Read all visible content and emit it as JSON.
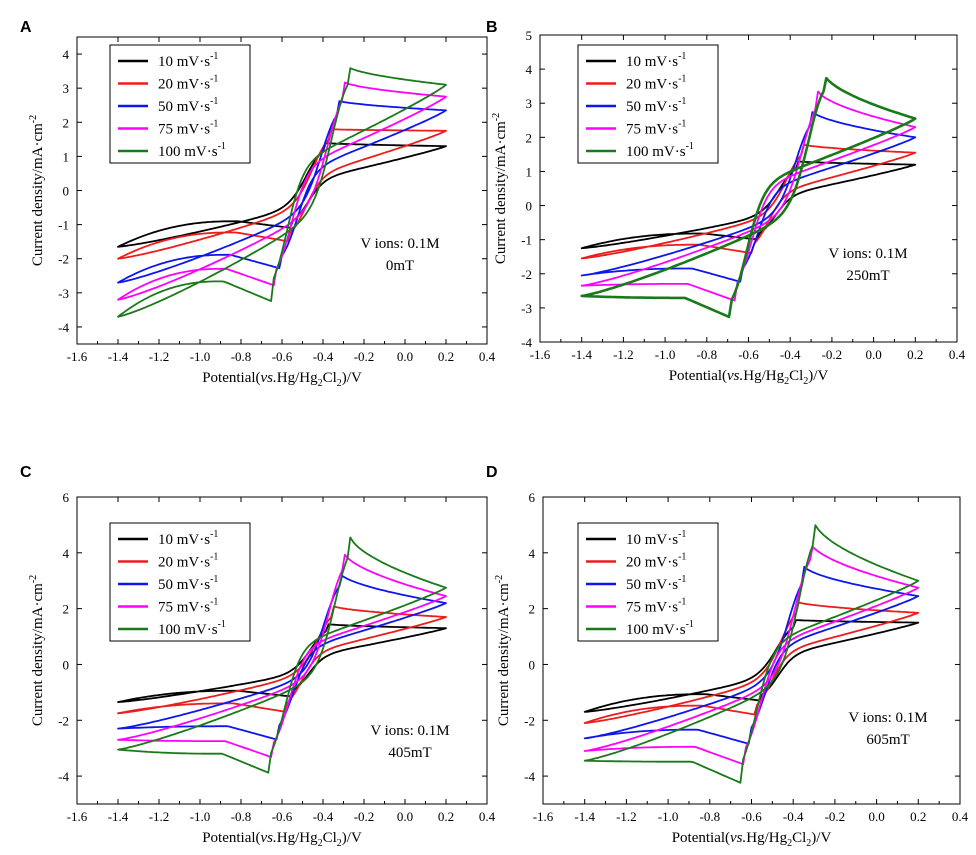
{
  "colors": {
    "10": "#000000",
    "20": "#ee1c1c",
    "50": "#0d16f0",
    "75": "#ff00ff",
    "100": "#1a7a1a"
  },
  "chart_data": [
    {
      "panel": "A",
      "type": "line",
      "ylim": [
        -4.5,
        4.5
      ],
      "xlim": [
        -1.6,
        0.4
      ],
      "xticks": [
        "-1.6",
        "-1.4",
        "-1.2",
        "-1.0",
        "-0.8",
        "-0.6",
        "-0.4",
        "-0.2",
        "0.0",
        "0.2",
        "0.4"
      ],
      "yticks": [
        "-4",
        "-3",
        "-2",
        "-1",
        "0",
        "1",
        "2",
        "3",
        "4"
      ],
      "ylabel_main": "Current density/mA·cm",
      "ylabel_sup": "-2",
      "xlabel_pre": "Potential(",
      "xlabel_italic": "vs.",
      "xlabel_mid": "Hg/Hg",
      "xlabel_sub": "2",
      "xlabel_mid2": "Cl",
      "xlabel_sub2": "2",
      "xlabel_post": ")/V",
      "annotation_1": "V ions: 0.1M",
      "annotation_2": "0mT",
      "legend": [
        {
          "label": "10 mV·s",
          "sup": "-1"
        },
        {
          "label": "20 mV·s",
          "sup": "-1"
        },
        {
          "label": "50 mV·s",
          "sup": "-1"
        },
        {
          "label": "75 mV·s",
          "sup": "-1"
        },
        {
          "label": "100 mV·s",
          "sup": "-1"
        }
      ],
      "series": [
        {
          "name": "10 mV·s-1",
          "start_anodic": -1.65,
          "peak_a_x": -0.4,
          "peak_a_y": 1.4,
          "end_anodic": 1.3,
          "start_cathodic": 1.3,
          "peak_c_x": -0.55,
          "peak_c_y": -1.1,
          "end_cathodic": -1.65
        },
        {
          "name": "20 mV·s-1",
          "start_anodic": -2.0,
          "peak_a_x": -0.37,
          "peak_a_y": 1.8,
          "end_anodic": 1.75,
          "start_cathodic": 1.75,
          "peak_c_x": -0.56,
          "peak_c_y": -1.5,
          "end_cathodic": -2.0
        },
        {
          "name": "50 mV·s-1",
          "start_anodic": -2.7,
          "peak_a_x": -0.33,
          "peak_a_y": 2.65,
          "end_anodic": 2.35,
          "start_cathodic": 2.35,
          "peak_c_x": -0.6,
          "peak_c_y": -2.3,
          "end_cathodic": -2.7
        },
        {
          "name": "75 mV·s-1",
          "start_anodic": -3.2,
          "peak_a_x": -0.3,
          "peak_a_y": 3.2,
          "end_anodic": 2.75,
          "start_cathodic": 2.75,
          "peak_c_x": -0.63,
          "peak_c_y": -2.8,
          "end_cathodic": -3.2
        },
        {
          "name": "100 mV·s-1",
          "start_anodic": -3.7,
          "peak_a_x": -0.28,
          "peak_a_y": 3.65,
          "end_anodic": 3.1,
          "start_cathodic": 3.1,
          "peak_c_x": -0.65,
          "peak_c_y": -3.25,
          "end_cathodic": -3.7
        }
      ]
    },
    {
      "panel": "B",
      "type": "line",
      "ylim": [
        -4,
        5
      ],
      "xlim": [
        -1.6,
        0.4
      ],
      "xticks": [
        "-1.6",
        "-1.4",
        "-1.2",
        "-1.0",
        "-0.8",
        "-0.6",
        "-0.4",
        "-0.2",
        "0.0",
        "0.2",
        "0.4"
      ],
      "yticks": [
        "-4",
        "-3",
        "-2",
        "-1",
        "0",
        "1",
        "2",
        "3",
        "4",
        "5"
      ],
      "ylabel_main": "Current density/mA·cm",
      "ylabel_sup": "-2",
      "xlabel_pre": "Potential(",
      "xlabel_italic": "vs.",
      "xlabel_mid": "Hg/Hg",
      "xlabel_sub": "2",
      "xlabel_mid2": "Cl",
      "xlabel_sub2": "2",
      "xlabel_post": ")/V",
      "annotation_1": "V ions: 0.1M",
      "annotation_2": "250mT",
      "legend": [
        {
          "label": "10 mV·s",
          "sup": "-1"
        },
        {
          "label": "20 mV·s",
          "sup": "-1"
        },
        {
          "label": "50 mV·s",
          "sup": "-1"
        },
        {
          "label": "75 mV·s",
          "sup": "-1"
        },
        {
          "label": "100 mV·s",
          "sup": "-1"
        }
      ],
      "series": [
        {
          "name": "10 mV·s-1",
          "start_anodic": -1.25,
          "peak_a_x": -0.37,
          "peak_a_y": 1.3,
          "end_anodic": 1.2,
          "start_cathodic": 1.2,
          "peak_c_x": -0.55,
          "peak_c_y": -1.0,
          "end_cathodic": -1.25
        },
        {
          "name": "20 mV·s-1",
          "start_anodic": -1.55,
          "peak_a_x": -0.34,
          "peak_a_y": 1.8,
          "end_anodic": 1.55,
          "start_cathodic": 1.55,
          "peak_c_x": -0.58,
          "peak_c_y": -1.4,
          "end_cathodic": -1.55
        },
        {
          "name": "50 mV·s-1",
          "start_anodic": -2.05,
          "peak_a_x": -0.3,
          "peak_a_y": 2.8,
          "end_anodic": 2.0,
          "start_cathodic": 2.0,
          "peak_c_x": -0.63,
          "peak_c_y": -2.25,
          "end_cathodic": -2.05
        },
        {
          "name": "75 mV·s-1",
          "start_anodic": -2.35,
          "peak_a_x": -0.27,
          "peak_a_y": 3.4,
          "end_anodic": 2.3,
          "start_cathodic": 2.3,
          "peak_c_x": -0.66,
          "peak_c_y": -2.8,
          "end_cathodic": -2.35
        },
        {
          "name": "100 mV·s-1",
          "start_anodic": -2.65,
          "peak_a_x": -0.24,
          "peak_a_y": 3.9,
          "end_anodic": 2.55,
          "start_cathodic": 2.55,
          "peak_c_x": -0.68,
          "peak_c_y": -3.3,
          "end_cathodic": -2.65
        }
      ]
    },
    {
      "panel": "C",
      "type": "line",
      "ylim": [
        -5,
        6
      ],
      "xlim": [
        -1.6,
        0.4
      ],
      "xticks": [
        "-1.6",
        "-1.4",
        "-1.2",
        "-1.0",
        "-0.8",
        "-0.6",
        "-0.4",
        "-0.2",
        "0.0",
        "0.2",
        "0.4"
      ],
      "yticks": [
        "-4",
        "-2",
        "0",
        "2",
        "4",
        "6"
      ],
      "ylabel_main": "Current density/mA·cm",
      "ylabel_sup": "-2",
      "xlabel_pre": "Potential(",
      "xlabel_italic": "vs.",
      "xlabel_mid": "Hg/Hg",
      "xlabel_sub": "2",
      "xlabel_mid2": "Cl",
      "xlabel_sub2": "2",
      "xlabel_post": ")/V",
      "annotation_1": "V ions: 0.1M",
      "annotation_2": "405mT",
      "legend": [
        {
          "label": "10 mV·s",
          "sup": "-1"
        },
        {
          "label": "20 mV·s",
          "sup": "-1"
        },
        {
          "label": "50 mV·s",
          "sup": "-1"
        },
        {
          "label": "75 mV·s",
          "sup": "-1"
        },
        {
          "label": "100 mV·s",
          "sup": "-1"
        }
      ],
      "series": [
        {
          "name": "10 mV·s-1",
          "start_anodic": -1.35,
          "peak_a_x": -0.38,
          "peak_a_y": 1.45,
          "end_anodic": 1.3,
          "start_cathodic": 1.3,
          "peak_c_x": -0.55,
          "peak_c_y": -1.15,
          "end_cathodic": -1.35
        },
        {
          "name": "20 mV·s-1",
          "start_anodic": -1.75,
          "peak_a_x": -0.35,
          "peak_a_y": 2.1,
          "end_anodic": 1.7,
          "start_cathodic": 1.7,
          "peak_c_x": -0.58,
          "peak_c_y": -1.7,
          "end_cathodic": -1.75
        },
        {
          "name": "50 mV·s-1",
          "start_anodic": -2.3,
          "peak_a_x": -0.32,
          "peak_a_y": 3.3,
          "end_anodic": 2.2,
          "start_cathodic": 2.2,
          "peak_c_x": -0.62,
          "peak_c_y": -2.7,
          "end_cathodic": -2.3
        },
        {
          "name": "75 mV·s-1",
          "start_anodic": -2.7,
          "peak_a_x": -0.3,
          "peak_a_y": 4.05,
          "end_anodic": 2.45,
          "start_cathodic": 2.45,
          "peak_c_x": -0.64,
          "peak_c_y": -3.35,
          "end_cathodic": -2.7
        },
        {
          "name": "100 mV·s-1",
          "start_anodic": -3.05,
          "peak_a_x": -0.27,
          "peak_a_y": 4.65,
          "end_anodic": 2.75,
          "start_cathodic": 2.75,
          "peak_c_x": -0.66,
          "peak_c_y": -3.9,
          "end_cathodic": -3.05
        }
      ]
    },
    {
      "panel": "D",
      "type": "line",
      "ylim": [
        -5,
        6
      ],
      "xlim": [
        -1.6,
        0.4
      ],
      "xticks": [
        "-1.6",
        "-1.4",
        "-1.2",
        "-1.0",
        "-0.8",
        "-0.6",
        "-0.4",
        "-0.2",
        "0.0",
        "0.2",
        "0.4"
      ],
      "yticks": [
        "-4",
        "-2",
        "0",
        "2",
        "4",
        "6"
      ],
      "ylabel_main": "Current density/mA·cm",
      "ylabel_sup": "-2",
      "xlabel_pre": "Potential(",
      "xlabel_italic": "vs.",
      "xlabel_mid": "Hg/Hg",
      "xlabel_sub": "2",
      "xlabel_mid2": "Cl",
      "xlabel_sub2": "2",
      "xlabel_post": ")/V",
      "annotation_1": "V ions: 0.1M",
      "annotation_2": "605mT",
      "legend": [
        {
          "label": "10 mV·s",
          "sup": "-1"
        },
        {
          "label": "20 mV·s",
          "sup": "-1"
        },
        {
          "label": "50 mV·s",
          "sup": "-1"
        },
        {
          "label": "75 mV·s",
          "sup": "-1"
        },
        {
          "label": "100 mV·s",
          "sup": "-1"
        }
      ],
      "series": [
        {
          "name": "10 mV·s-1",
          "start_anodic": -1.7,
          "peak_a_x": -0.4,
          "peak_a_y": 1.6,
          "end_anodic": 1.5,
          "start_cathodic": 1.5,
          "peak_c_x": -0.55,
          "peak_c_y": -1.3,
          "end_cathodic": -1.7
        },
        {
          "name": "20 mV·s-1",
          "start_anodic": -2.1,
          "peak_a_x": -0.38,
          "peak_a_y": 2.25,
          "end_anodic": 1.85,
          "start_cathodic": 1.85,
          "peak_c_x": -0.58,
          "peak_c_y": -1.8,
          "end_cathodic": -2.1
        },
        {
          "name": "50 mV·s-1",
          "start_anodic": -2.65,
          "peak_a_x": -0.35,
          "peak_a_y": 3.55,
          "end_anodic": 2.45,
          "start_cathodic": 2.45,
          "peak_c_x": -0.61,
          "peak_c_y": -2.85,
          "end_cathodic": -2.65
        },
        {
          "name": "75 mV·s-1",
          "start_anodic": -3.1,
          "peak_a_x": -0.32,
          "peak_a_y": 4.4,
          "end_anodic": 2.75,
          "start_cathodic": 2.75,
          "peak_c_x": -0.63,
          "peak_c_y": -3.6,
          "end_cathodic": -3.1
        },
        {
          "name": "100 mV·s-1",
          "start_anodic": -3.45,
          "peak_a_x": -0.3,
          "peak_a_y": 5.15,
          "end_anodic": 3.0,
          "start_cathodic": 3.0,
          "peak_c_x": -0.65,
          "peak_c_y": -4.25,
          "end_cathodic": -3.45
        }
      ]
    }
  ]
}
